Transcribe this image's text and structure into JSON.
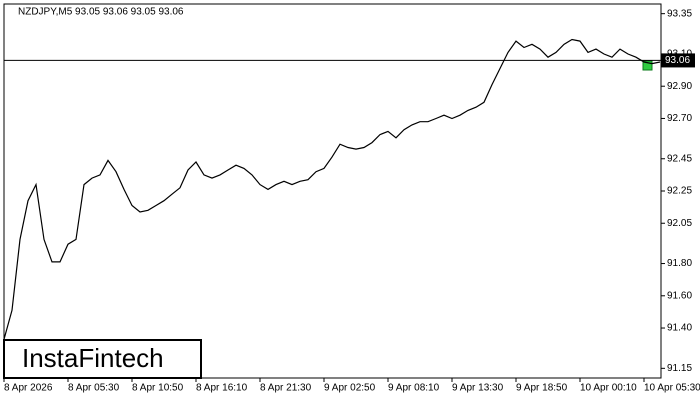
{
  "chart_data": {
    "type": "line",
    "title": "NZDJPY,M5  93.05 93.06 93.05 93.06",
    "watermark": "InstaFintech",
    "categories": [
      "8 Apr 2026",
      null,
      null,
      null,
      null,
      null,
      null,
      null,
      "8 Apr 05:30",
      null,
      null,
      null,
      null,
      null,
      null,
      null,
      "8 Apr 10:50",
      null,
      null,
      null,
      null,
      null,
      null,
      null,
      "8 Apr 16:10",
      null,
      null,
      null,
      null,
      null,
      null,
      null,
      "8 Apr 21:30",
      null,
      null,
      null,
      null,
      null,
      null,
      null,
      "9 Apr 02:50",
      null,
      null,
      null,
      null,
      null,
      null,
      null,
      "9 Apr 08:10",
      null,
      null,
      null,
      null,
      null,
      null,
      null,
      "9 Apr 13:30",
      null,
      null,
      null,
      null,
      null,
      null,
      null,
      "9 Apr 18:50",
      null,
      null,
      null,
      null,
      null,
      null,
      null,
      "10 Apr 00:10",
      null,
      null,
      null,
      null,
      null,
      null,
      null,
      "10 Apr 05:30",
      null,
      null
    ],
    "values": [
      91.33,
      91.51,
      91.95,
      92.19,
      92.29,
      91.95,
      91.81,
      91.81,
      91.92,
      91.95,
      92.29,
      92.33,
      92.35,
      92.44,
      92.37,
      92.26,
      92.16,
      92.12,
      92.13,
      92.16,
      92.19,
      92.23,
      92.27,
      92.38,
      92.43,
      92.35,
      92.33,
      92.35,
      92.38,
      92.41,
      92.39,
      92.35,
      92.29,
      92.26,
      92.29,
      92.31,
      92.29,
      92.31,
      92.32,
      92.37,
      92.39,
      92.46,
      92.54,
      92.52,
      92.51,
      92.52,
      92.55,
      92.6,
      92.62,
      92.58,
      92.63,
      92.66,
      92.68,
      92.68,
      92.7,
      92.72,
      92.7,
      92.72,
      92.75,
      92.77,
      92.8,
      92.91,
      93.01,
      93.11,
      93.18,
      93.14,
      93.16,
      93.13,
      93.08,
      93.11,
      93.16,
      93.19,
      93.18,
      93.11,
      93.13,
      93.1,
      93.08,
      93.13,
      93.1,
      93.08,
      93.05,
      93.04,
      93.05
    ],
    "color": "#000000",
    "current_price": 93.06,
    "ylim": [
      91.09,
      93.41
    ],
    "yticks": [
      93.35,
      {
        "value": 93.1,
        "label": "93.10"
      },
      {
        "value": 92.9,
        "label": "92.90"
      },
      {
        "value": 92.7,
        "label": "92.70"
      },
      92.45,
      92.25,
      92.05,
      {
        "value": 91.8,
        "label": "91.80"
      },
      {
        "value": 91.6,
        "label": "91.60"
      },
      {
        "value": 91.4,
        "label": "91.40"
      },
      91.15
    ],
    "grid": false
  }
}
